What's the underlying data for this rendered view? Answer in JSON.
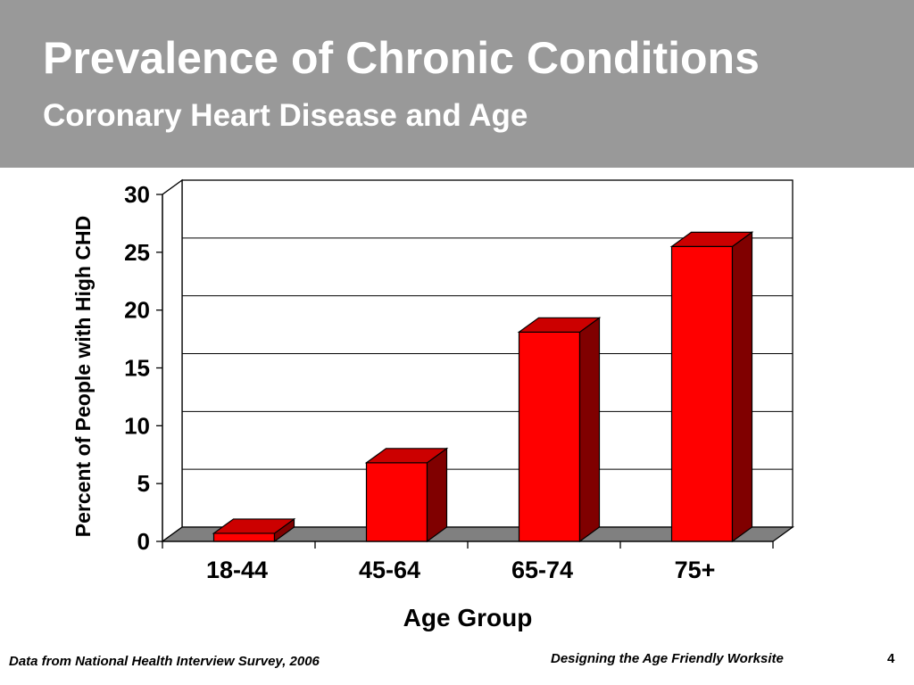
{
  "slide": {
    "title": "Prevalence of Chronic Conditions",
    "subtitle": "Coronary Heart Disease and Age",
    "footer_left": "Data from National Health Interview Survey, 2006",
    "footer_right": "Designing the Age Friendly Worksite",
    "page_number": "4"
  },
  "colors": {
    "header_bg": "#999999",
    "bar_front": "#ff0000",
    "bar_side": "#800000",
    "bar_top": "#cc0000",
    "floor": "#808080"
  },
  "chart_data": {
    "type": "bar",
    "categories": [
      "18-44",
      "45-64",
      "65-74",
      "75+"
    ],
    "values": [
      0.7,
      6.8,
      18.1,
      25.5
    ],
    "title": "",
    "xlabel": "Age Group",
    "ylabel": "Percent of People with High CHD",
    "ylim": [
      0,
      30
    ],
    "yticks": [
      "0",
      "5",
      "10",
      "15",
      "20",
      "25",
      "30"
    ],
    "grid": true,
    "legend": "none",
    "style": "3d"
  }
}
